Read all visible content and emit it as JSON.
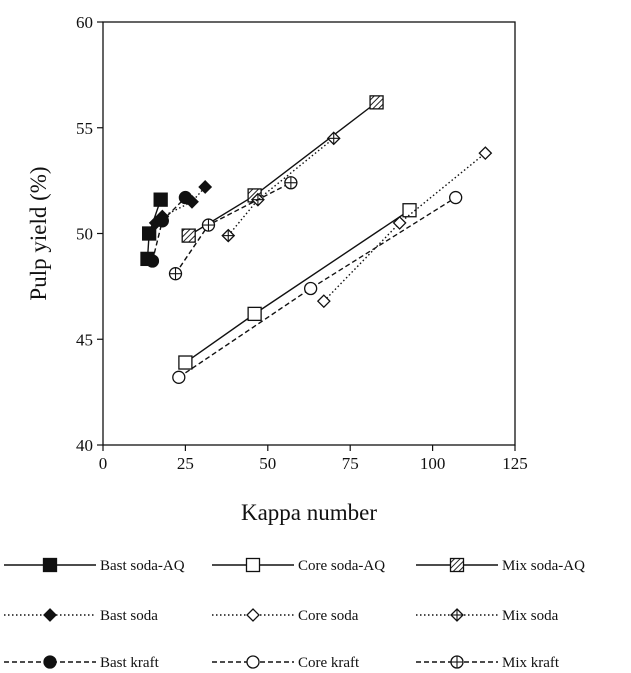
{
  "chart_data": {
    "type": "line",
    "xlabel": "Kappa number",
    "ylabel": "Pulp yield (%)",
    "xlim": [
      0,
      125
    ],
    "ylim": [
      40,
      60
    ],
    "xticks": [
      0,
      25,
      50,
      75,
      100,
      125
    ],
    "yticks": [
      40,
      45,
      50,
      55,
      60
    ],
    "grid": false,
    "legend_position": "bottom",
    "series": [
      {
        "name": "Bast soda-AQ",
        "marker": "square",
        "fill": "filled",
        "line": "solid",
        "points": [
          {
            "x": 13.5,
            "y": 48.8
          },
          {
            "x": 14.0,
            "y": 50.0
          },
          {
            "x": 17.5,
            "y": 51.6
          }
        ]
      },
      {
        "name": "Core soda-AQ",
        "marker": "square",
        "fill": "open",
        "line": "solid",
        "points": [
          {
            "x": 25,
            "y": 43.9
          },
          {
            "x": 46,
            "y": 46.2
          },
          {
            "x": 93,
            "y": 51.1
          }
        ]
      },
      {
        "name": "Mix soda-AQ",
        "marker": "square-hatched",
        "fill": "hatched",
        "line": "solid",
        "points": [
          {
            "x": 26,
            "y": 49.9
          },
          {
            "x": 46,
            "y": 51.8
          },
          {
            "x": 83,
            "y": 56.2
          }
        ]
      },
      {
        "name": "Bast soda",
        "marker": "diamond",
        "fill": "filled",
        "line": "dotted",
        "points": [
          {
            "x": 16,
            "y": 50.5
          },
          {
            "x": 18,
            "y": 50.8
          },
          {
            "x": 27,
            "y": 51.5
          },
          {
            "x": 31,
            "y": 52.2
          }
        ]
      },
      {
        "name": "Core soda",
        "marker": "diamond",
        "fill": "open",
        "line": "dotted",
        "points": [
          {
            "x": 67,
            "y": 46.8
          },
          {
            "x": 90,
            "y": 50.5
          },
          {
            "x": 116,
            "y": 53.8
          }
        ]
      },
      {
        "name": "Mix soda",
        "marker": "diamond-cross",
        "fill": "crossed",
        "line": "dotted",
        "points": [
          {
            "x": 38,
            "y": 49.9
          },
          {
            "x": 47,
            "y": 51.6
          },
          {
            "x": 70,
            "y": 54.5
          }
        ]
      },
      {
        "name": "Bast kraft",
        "marker": "circle",
        "fill": "filled",
        "line": "dashed",
        "points": [
          {
            "x": 15,
            "y": 48.7
          },
          {
            "x": 18,
            "y": 50.6
          },
          {
            "x": 25,
            "y": 51.7
          }
        ]
      },
      {
        "name": "Core kraft",
        "marker": "circle",
        "fill": "open",
        "line": "dashed",
        "points": [
          {
            "x": 23,
            "y": 43.2
          },
          {
            "x": 63,
            "y": 47.4
          },
          {
            "x": 107,
            "y": 51.7
          }
        ]
      },
      {
        "name": "Mix kraft",
        "marker": "circle-cross",
        "fill": "crossed",
        "line": "dashed",
        "points": [
          {
            "x": 22,
            "y": 48.1
          },
          {
            "x": 32,
            "y": 50.4
          },
          {
            "x": 57,
            "y": 52.4
          }
        ]
      }
    ]
  }
}
